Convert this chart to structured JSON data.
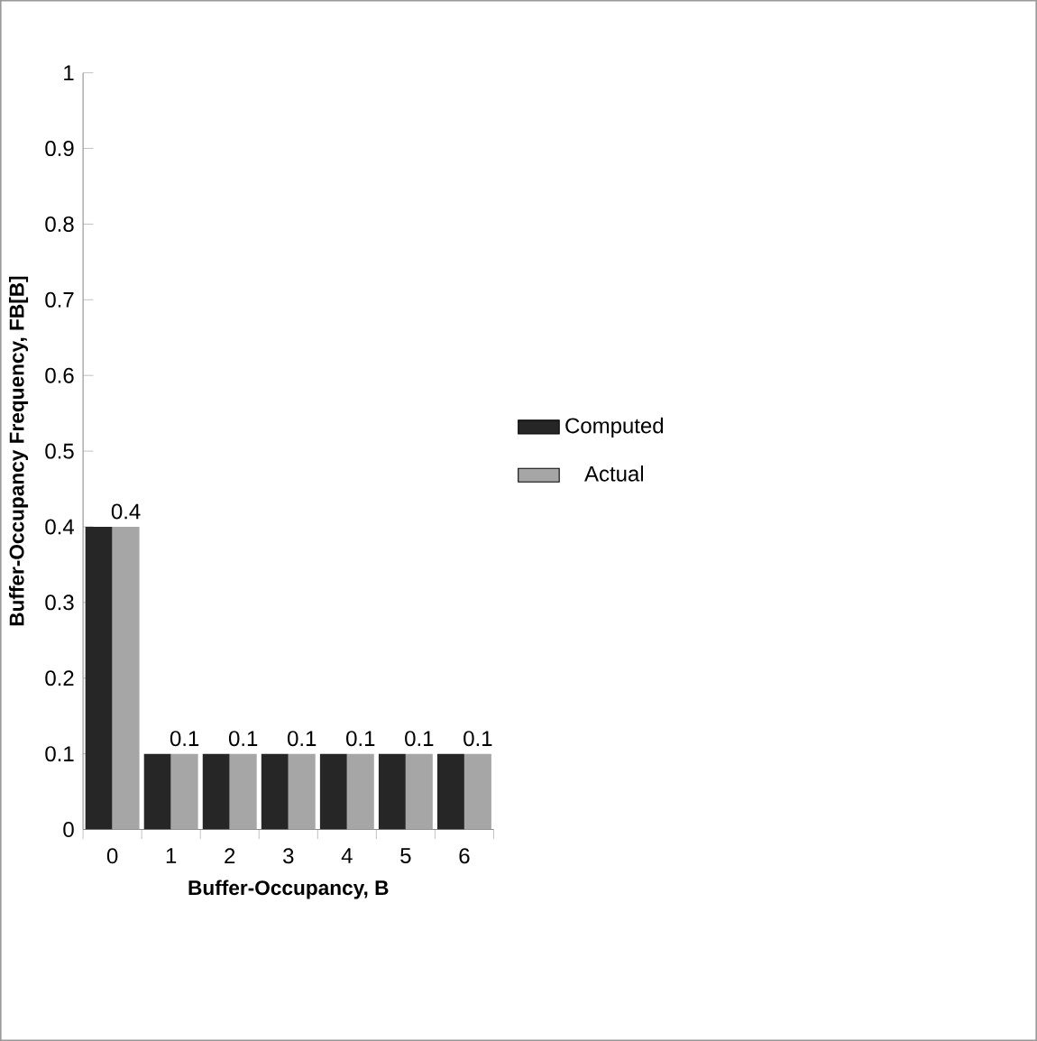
{
  "chart_data": {
    "type": "bar",
    "xlabel": "Buffer-Occupancy, B",
    "ylabel": "Buffer-Occupancy Frequency, FB[B]",
    "categories": [
      "0",
      "1",
      "2",
      "3",
      "4",
      "5",
      "6"
    ],
    "series": [
      {
        "name": "Computed",
        "color": "#262626",
        "values": [
          0.4,
          0.1,
          0.1,
          0.1,
          0.1,
          0.1,
          0.1
        ]
      },
      {
        "name": "Actual",
        "color": "#a6a6a6",
        "values": [
          0.4,
          0.1,
          0.1,
          0.1,
          0.1,
          0.1,
          0.1
        ],
        "value_labels": [
          "0.4",
          "0.1",
          "0.1",
          "0.1",
          "0.1",
          "0.1",
          "0.1"
        ]
      }
    ],
    "ylim": [
      0,
      1
    ],
    "yticks": [
      0,
      0.1,
      0.2,
      0.3,
      0.4,
      0.5,
      0.6,
      0.7,
      0.8,
      0.9,
      1
    ],
    "legend": "right"
  }
}
